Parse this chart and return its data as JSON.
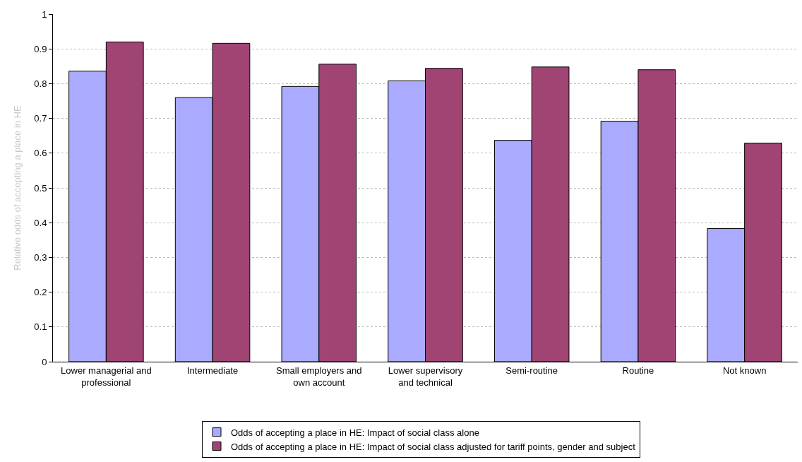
{
  "chart_data": {
    "type": "bar",
    "ylabel": "Relative odds of accepting a place in HE",
    "categories": [
      "Lower managerial and professional",
      "Intermediate",
      "Small employers and own account",
      "Lower supervisory and technical",
      "Semi-routine",
      "Routine",
      "Not known"
    ],
    "series": [
      {
        "name": "Odds of accepting a place in HE: Impact of social class alone",
        "color": "#aaaaff",
        "values": [
          0.836,
          0.76,
          0.792,
          0.808,
          0.637,
          0.692,
          0.383
        ]
      },
      {
        "name": "Odds of accepting a place in HE: Impact of social class adjusted for tariff points, gender and subject",
        "color": "#a04474",
        "values": [
          0.92,
          0.916,
          0.856,
          0.844,
          0.848,
          0.84,
          0.629
        ]
      }
    ],
    "ylim": [
      0,
      1
    ],
    "yticks": [
      0,
      0.1,
      0.2,
      0.3,
      0.4,
      0.5,
      0.6,
      0.7,
      0.8,
      0.9,
      1
    ],
    "grid": "y",
    "legend": "bottom"
  }
}
